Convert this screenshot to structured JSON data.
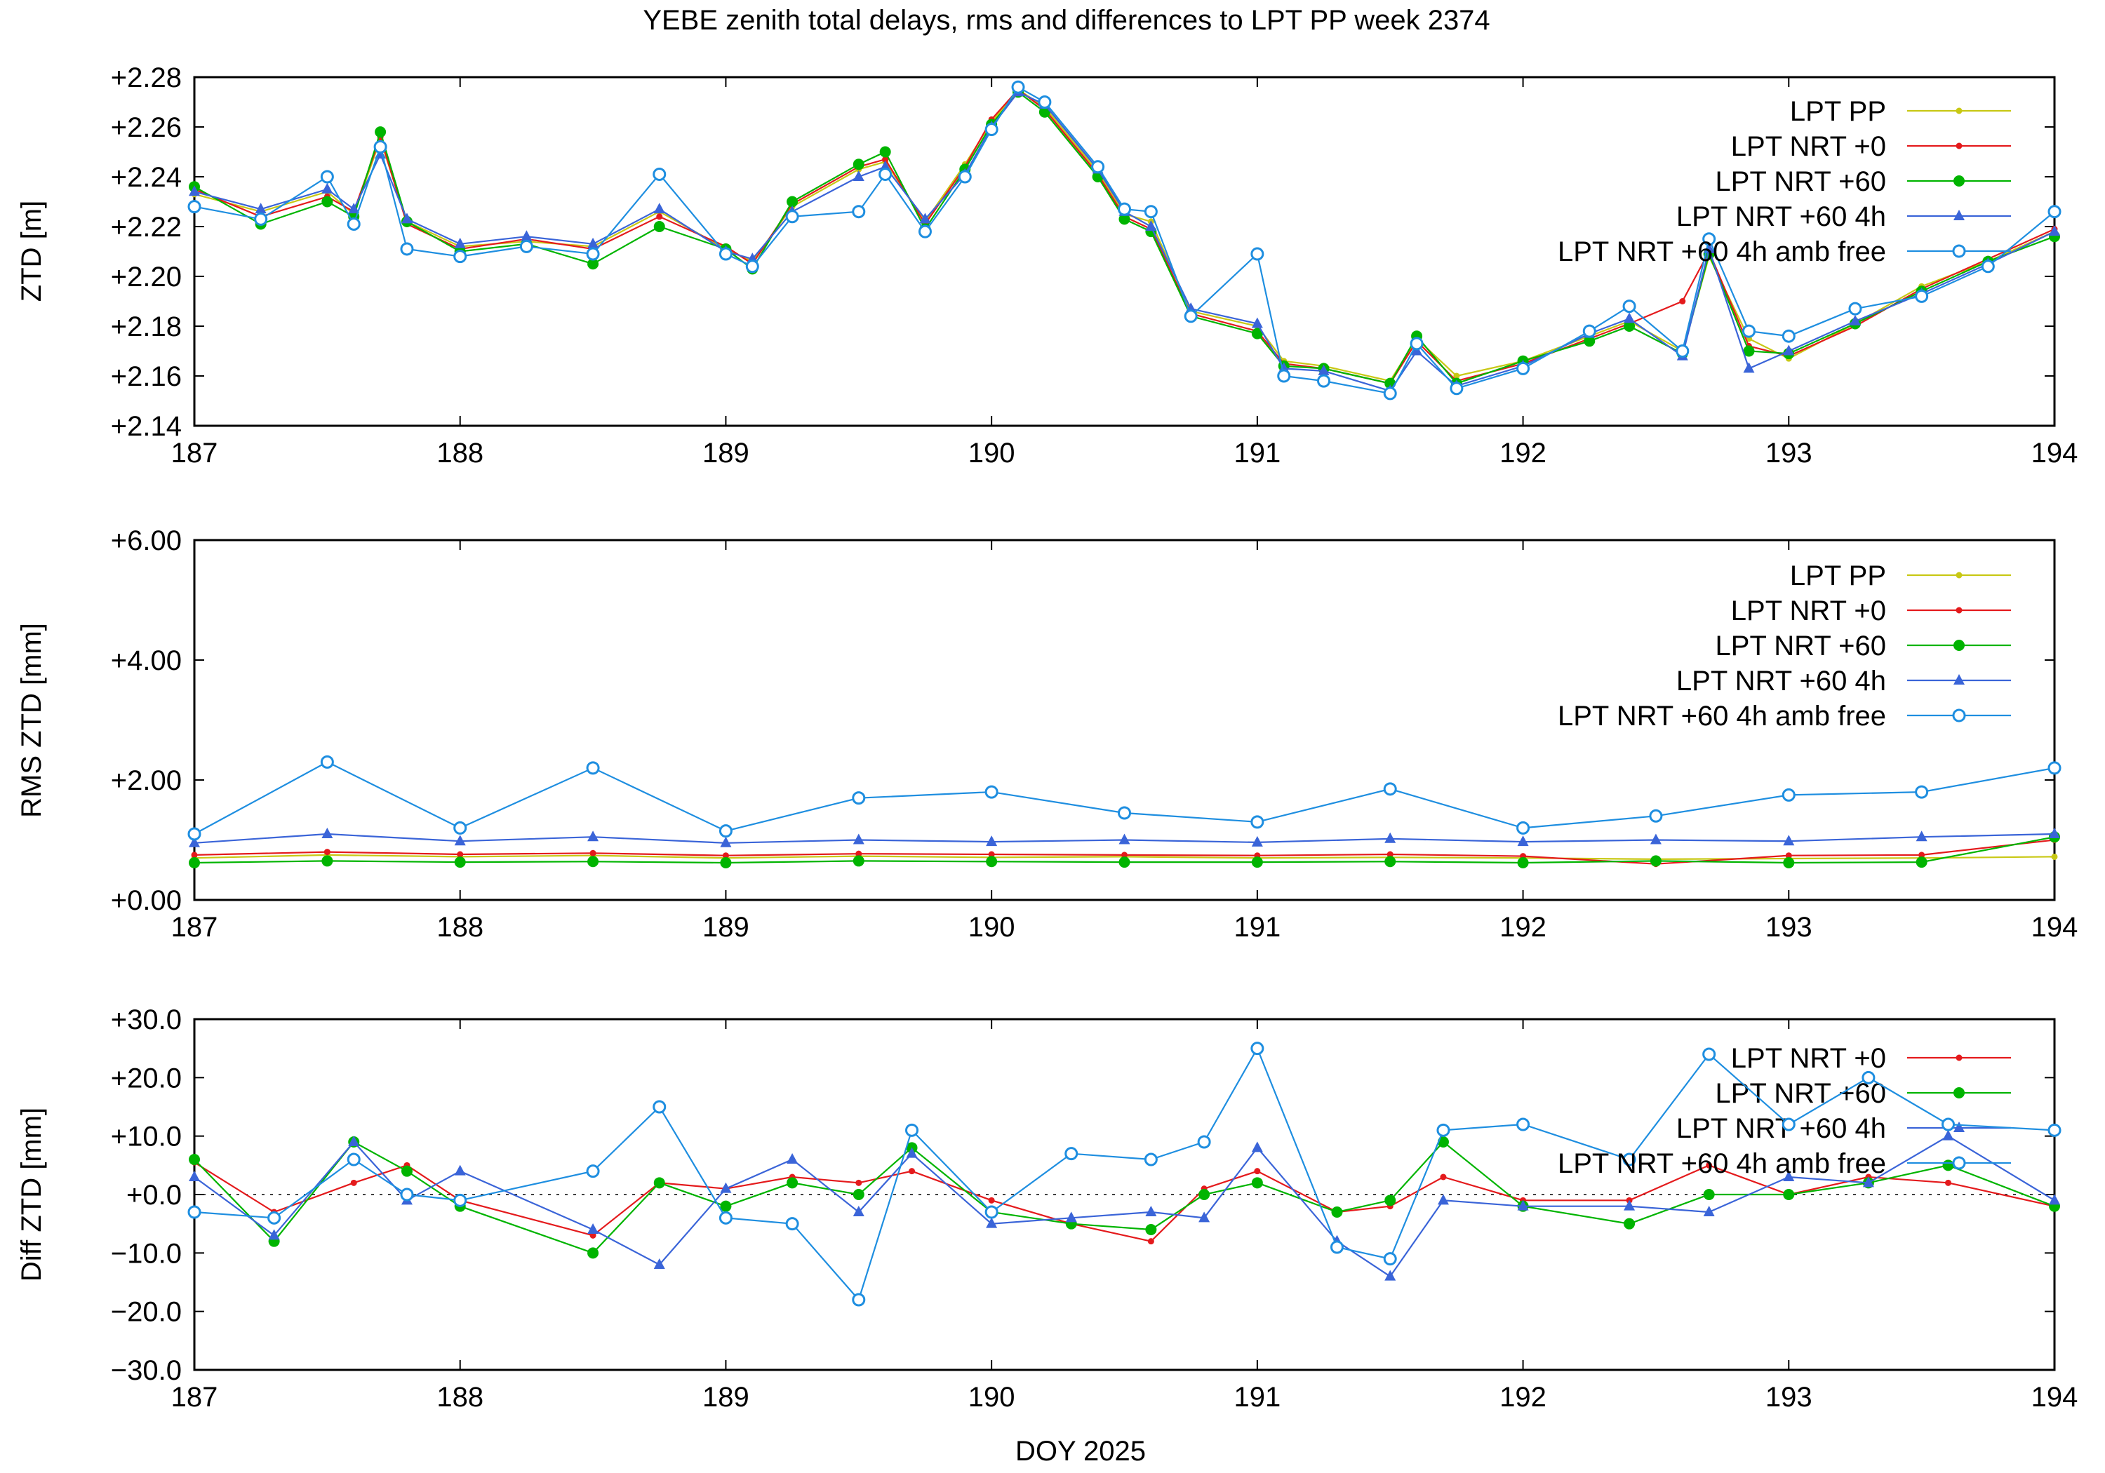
{
  "title": "YEBE zenith total delays, rms and differences to LPT PP week 2374",
  "xlabel": "DOY 2025",
  "colors": {
    "lpt_pp": "#c8c814",
    "lpt_nrt_0": "#e41a1c",
    "lpt_nrt_60": "#00b400",
    "lpt_nrt_60_4h": "#3a64d8",
    "lpt_nrt_60_4h_amb_free": "#1e8ee0"
  },
  "chart_data": [
    {
      "type": "line",
      "id": "ztd",
      "ylabel": "ZTD [m]",
      "xlim": [
        187,
        194
      ],
      "ylim": [
        2.14,
        2.28
      ],
      "x_ticks": [
        "187",
        "188",
        "189",
        "190",
        "191",
        "192",
        "193",
        "194"
      ],
      "y_ticks": [
        "+2.14",
        "+2.16",
        "+2.18",
        "+2.20",
        "+2.22",
        "+2.24",
        "+2.26",
        "+2.28"
      ],
      "y_tick_values": [
        2.14,
        2.16,
        2.18,
        2.2,
        2.22,
        2.24,
        2.26,
        2.28
      ],
      "legend_position": "top-right",
      "series": [
        {
          "name": "LPT PP",
          "key": "lpt_pp",
          "marker": "small-dot",
          "x": [
            187.0,
            187.25,
            187.5,
            187.6,
            187.7,
            187.8,
            188.0,
            188.25,
            188.5,
            188.75,
            189.0,
            189.1,
            189.25,
            189.5,
            189.6,
            189.75,
            189.9,
            190.0,
            190.1,
            190.2,
            190.4,
            190.5,
            190.6,
            190.75,
            191.0,
            191.1,
            191.25,
            191.5,
            191.6,
            191.75,
            192.0,
            192.25,
            192.4,
            192.6,
            192.7,
            192.85,
            193.0,
            193.25,
            193.5,
            193.75,
            194.0
          ],
          "y": [
            2.233,
            2.226,
            2.234,
            2.225,
            2.255,
            2.222,
            2.212,
            2.214,
            2.212,
            2.226,
            2.211,
            2.206,
            2.228,
            2.243,
            2.246,
            2.222,
            2.245,
            2.262,
            2.275,
            2.268,
            2.242,
            2.225,
            2.222,
            2.186,
            2.18,
            2.166,
            2.164,
            2.158,
            2.175,
            2.16,
            2.166,
            2.176,
            2.182,
            2.17,
            2.208,
            2.175,
            2.167,
            2.181,
            2.196,
            2.206,
            2.218
          ]
        },
        {
          "name": "LPT NRT +0",
          "key": "lpt_nrt_0",
          "marker": "small-dot",
          "x": [
            187.0,
            187.25,
            187.5,
            187.6,
            187.7,
            187.8,
            188.0,
            188.25,
            188.5,
            188.75,
            189.0,
            189.1,
            189.25,
            189.5,
            189.6,
            189.75,
            189.9,
            190.0,
            190.1,
            190.2,
            190.4,
            190.5,
            190.6,
            190.75,
            191.0,
            191.1,
            191.25,
            191.5,
            191.6,
            191.75,
            192.0,
            192.25,
            192.4,
            192.6,
            192.7,
            192.85,
            193.0,
            193.25,
            193.5,
            193.75,
            194.0
          ],
          "y": [
            2.235,
            2.224,
            2.232,
            2.226,
            2.256,
            2.221,
            2.211,
            2.215,
            2.211,
            2.224,
            2.212,
            2.205,
            2.229,
            2.244,
            2.247,
            2.221,
            2.244,
            2.263,
            2.275,
            2.267,
            2.241,
            2.224,
            2.219,
            2.185,
            2.178,
            2.165,
            2.163,
            2.157,
            2.174,
            2.158,
            2.165,
            2.175,
            2.181,
            2.19,
            2.21,
            2.172,
            2.168,
            2.18,
            2.195,
            2.207,
            2.219
          ]
        },
        {
          "name": "LPT NRT +60",
          "key": "lpt_nrt_60",
          "marker": "dot",
          "x": [
            187.0,
            187.25,
            187.5,
            187.6,
            187.7,
            187.8,
            188.0,
            188.25,
            188.5,
            188.75,
            189.0,
            189.1,
            189.25,
            189.5,
            189.6,
            189.75,
            189.9,
            190.0,
            190.1,
            190.2,
            190.4,
            190.5,
            190.6,
            190.75,
            191.0,
            191.1,
            191.25,
            191.5,
            191.6,
            191.75,
            192.0,
            192.25,
            192.4,
            192.6,
            192.7,
            192.85,
            193.0,
            193.25,
            193.5,
            193.75,
            194.0
          ],
          "y": [
            2.236,
            2.221,
            2.23,
            2.224,
            2.258,
            2.222,
            2.21,
            2.213,
            2.205,
            2.22,
            2.211,
            2.203,
            2.23,
            2.245,
            2.25,
            2.219,
            2.243,
            2.261,
            2.274,
            2.266,
            2.24,
            2.223,
            2.218,
            2.184,
            2.177,
            2.164,
            2.163,
            2.157,
            2.176,
            2.157,
            2.166,
            2.174,
            2.18,
            2.169,
            2.209,
            2.17,
            2.169,
            2.181,
            2.194,
            2.206,
            2.216
          ]
        },
        {
          "name": "LPT NRT +60 4h",
          "key": "lpt_nrt_60_4h",
          "marker": "triangle",
          "x": [
            187.0,
            187.25,
            187.5,
            187.6,
            187.7,
            187.8,
            188.0,
            188.25,
            188.5,
            188.75,
            189.0,
            189.1,
            189.25,
            189.5,
            189.6,
            189.75,
            189.9,
            190.0,
            190.1,
            190.2,
            190.4,
            190.5,
            190.6,
            190.75,
            191.0,
            191.1,
            191.25,
            191.5,
            191.6,
            191.75,
            192.0,
            192.25,
            192.4,
            192.6,
            192.7,
            192.85,
            193.0,
            193.25,
            193.5,
            193.75,
            194.0
          ],
          "y": [
            2.234,
            2.227,
            2.235,
            2.227,
            2.249,
            2.223,
            2.213,
            2.216,
            2.213,
            2.227,
            2.21,
            2.207,
            2.226,
            2.24,
            2.244,
            2.223,
            2.241,
            2.26,
            2.274,
            2.269,
            2.243,
            2.226,
            2.22,
            2.187,
            2.181,
            2.163,
            2.162,
            2.154,
            2.17,
            2.156,
            2.164,
            2.177,
            2.183,
            2.168,
            2.211,
            2.163,
            2.17,
            2.182,
            2.193,
            2.205,
            2.218
          ]
        },
        {
          "name": "LPT NRT +60 4h amb free",
          "key": "lpt_nrt_60_4h_amb_free",
          "marker": "open-circle",
          "x": [
            187.0,
            187.25,
            187.5,
            187.6,
            187.7,
            187.8,
            188.0,
            188.25,
            188.5,
            188.75,
            189.0,
            189.1,
            189.25,
            189.5,
            189.6,
            189.75,
            189.9,
            190.0,
            190.1,
            190.2,
            190.4,
            190.5,
            190.6,
            190.75,
            191.0,
            191.1,
            191.25,
            191.5,
            191.6,
            191.75,
            192.0,
            192.25,
            192.4,
            192.6,
            192.7,
            192.85,
            193.0,
            193.25,
            193.5,
            193.75,
            194.0
          ],
          "y": [
            2.228,
            2.223,
            2.24,
            2.221,
            2.252,
            2.211,
            2.208,
            2.212,
            2.209,
            2.241,
            2.209,
            2.204,
            2.224,
            2.226,
            2.241,
            2.218,
            2.24,
            2.259,
            2.276,
            2.27,
            2.244,
            2.227,
            2.226,
            2.184,
            2.209,
            2.16,
            2.158,
            2.153,
            2.173,
            2.155,
            2.163,
            2.178,
            2.188,
            2.17,
            2.215,
            2.178,
            2.176,
            2.187,
            2.192,
            2.204,
            2.226
          ]
        }
      ]
    },
    {
      "type": "line",
      "id": "rms",
      "ylabel": "RMS ZTD [mm]",
      "xlim": [
        187,
        194
      ],
      "ylim": [
        0,
        6
      ],
      "x_ticks": [
        "187",
        "188",
        "189",
        "190",
        "191",
        "192",
        "193",
        "194"
      ],
      "y_ticks": [
        "+0.00",
        "+2.00",
        "+4.00",
        "+6.00"
      ],
      "y_tick_values": [
        0,
        2,
        4,
        6
      ],
      "legend_position": "top-right",
      "series": [
        {
          "name": "LPT PP",
          "key": "lpt_pp",
          "marker": "small-dot",
          "x": [
            187.0,
            187.5,
            188.0,
            188.5,
            189.0,
            189.5,
            190.0,
            190.5,
            191.0,
            191.5,
            192.0,
            192.5,
            193.0,
            193.5,
            194.0
          ],
          "y": [
            0.7,
            0.75,
            0.72,
            0.74,
            0.7,
            0.73,
            0.71,
            0.72,
            0.7,
            0.71,
            0.7,
            0.68,
            0.69,
            0.7,
            0.72
          ]
        },
        {
          "name": "LPT NRT +0",
          "key": "lpt_nrt_0",
          "marker": "small-dot",
          "x": [
            187.0,
            187.5,
            188.0,
            188.5,
            189.0,
            189.5,
            190.0,
            190.5,
            191.0,
            191.5,
            192.0,
            192.5,
            193.0,
            193.5,
            194.0
          ],
          "y": [
            0.75,
            0.8,
            0.76,
            0.78,
            0.74,
            0.77,
            0.76,
            0.75,
            0.74,
            0.76,
            0.73,
            0.6,
            0.74,
            0.75,
            1.0
          ]
        },
        {
          "name": "LPT NRT +60",
          "key": "lpt_nrt_60",
          "marker": "dot",
          "x": [
            187.0,
            187.5,
            188.0,
            188.5,
            189.0,
            189.5,
            190.0,
            190.5,
            191.0,
            191.5,
            192.0,
            192.5,
            193.0,
            193.5,
            194.0
          ],
          "y": [
            0.62,
            0.65,
            0.63,
            0.64,
            0.62,
            0.65,
            0.64,
            0.63,
            0.63,
            0.64,
            0.62,
            0.65,
            0.62,
            0.63,
            1.05
          ]
        },
        {
          "name": "LPT NRT +60 4h",
          "key": "lpt_nrt_60_4h",
          "marker": "triangle",
          "x": [
            187.0,
            187.5,
            188.0,
            188.5,
            189.0,
            189.5,
            190.0,
            190.5,
            191.0,
            191.5,
            192.0,
            192.5,
            193.0,
            193.5,
            194.0
          ],
          "y": [
            0.95,
            1.1,
            0.98,
            1.05,
            0.95,
            1.0,
            0.97,
            1.0,
            0.96,
            1.02,
            0.97,
            1.0,
            0.98,
            1.05,
            1.1
          ]
        },
        {
          "name": "LPT NRT +60 4h amb free",
          "key": "lpt_nrt_60_4h_amb_free",
          "marker": "open-circle",
          "x": [
            187.0,
            187.5,
            188.0,
            188.5,
            189.0,
            189.5,
            190.0,
            190.5,
            191.0,
            191.5,
            192.0,
            192.5,
            193.0,
            193.5,
            194.0
          ],
          "y": [
            1.1,
            2.3,
            1.2,
            2.2,
            1.15,
            1.7,
            1.8,
            1.45,
            1.3,
            1.85,
            1.2,
            1.4,
            1.75,
            1.8,
            2.2
          ]
        }
      ]
    },
    {
      "type": "line",
      "id": "diff",
      "ylabel": "Diff ZTD [mm]",
      "xlabel": "DOY 2025",
      "xlim": [
        187,
        194
      ],
      "ylim": [
        -30,
        30
      ],
      "x_ticks": [
        "187",
        "188",
        "189",
        "190",
        "191",
        "192",
        "193",
        "194"
      ],
      "y_ticks": [
        "−30.0",
        "−20.0",
        "−10.0",
        "+0.0",
        "+10.0",
        "+20.0",
        "+30.0"
      ],
      "y_tick_values": [
        -30,
        -20,
        -10,
        0,
        10,
        20,
        30
      ],
      "zero_line": true,
      "legend_position": "top-right",
      "series": [
        {
          "name": "LPT NRT +0",
          "key": "lpt_nrt_0",
          "marker": "small-dot",
          "x": [
            187.0,
            187.3,
            187.6,
            187.8,
            188.0,
            188.5,
            188.75,
            189.0,
            189.25,
            189.5,
            189.7,
            190.0,
            190.3,
            190.6,
            190.8,
            191.0,
            191.3,
            191.5,
            191.7,
            192.0,
            192.4,
            192.7,
            193.0,
            193.3,
            193.6,
            194.0
          ],
          "y": [
            5.5,
            -3.0,
            2.0,
            5.0,
            -1.0,
            -7.0,
            2.0,
            1.0,
            3.0,
            2.0,
            4.0,
            -1.0,
            -5.0,
            -8.0,
            1.0,
            4.0,
            -3.0,
            -2.0,
            3.0,
            -1.0,
            -1.0,
            5.0,
            0.0,
            3.0,
            2.0,
            -2.0
          ]
        },
        {
          "name": "LPT NRT +60",
          "key": "lpt_nrt_60",
          "marker": "dot",
          "x": [
            187.0,
            187.3,
            187.6,
            187.8,
            188.0,
            188.5,
            188.75,
            189.0,
            189.25,
            189.5,
            189.7,
            190.0,
            190.3,
            190.6,
            190.8,
            191.0,
            191.3,
            191.5,
            191.7,
            192.0,
            192.4,
            192.7,
            193.0,
            193.3,
            193.6,
            194.0
          ],
          "y": [
            6.0,
            -8.0,
            9.0,
            4.0,
            -2.0,
            -10.0,
            2.0,
            -2.0,
            2.0,
            0.0,
            8.0,
            -3.0,
            -5.0,
            -6.0,
            0.0,
            2.0,
            -3.0,
            -1.0,
            9.0,
            -2.0,
            -5.0,
            0.0,
            0.0,
            2.0,
            5.0,
            -2.0
          ]
        },
        {
          "name": "LPT NRT +60 4h",
          "key": "lpt_nrt_60_4h",
          "marker": "triangle",
          "x": [
            187.0,
            187.3,
            187.6,
            187.8,
            188.0,
            188.5,
            188.75,
            189.0,
            189.25,
            189.5,
            189.7,
            190.0,
            190.3,
            190.6,
            190.8,
            191.0,
            191.3,
            191.5,
            191.7,
            192.0,
            192.4,
            192.7,
            193.0,
            193.3,
            193.6,
            194.0
          ],
          "y": [
            3.0,
            -7.0,
            9.0,
            -1.0,
            4.0,
            -6.0,
            -12.0,
            1.0,
            6.0,
            -3.0,
            7.0,
            -5.0,
            -4.0,
            -3.0,
            -4.0,
            8.0,
            -8.0,
            -14.0,
            -1.0,
            -2.0,
            -2.0,
            -3.0,
            3.0,
            2.0,
            10.0,
            -1.0
          ]
        },
        {
          "name": "LPT NRT +60 4h amb free",
          "key": "lpt_nrt_60_4h_amb_free",
          "marker": "open-circle",
          "x": [
            187.0,
            187.3,
            187.6,
            187.8,
            188.0,
            188.5,
            188.75,
            189.0,
            189.25,
            189.5,
            189.7,
            190.0,
            190.3,
            190.6,
            190.8,
            191.0,
            191.3,
            191.5,
            191.7,
            192.0,
            192.4,
            192.7,
            193.0,
            193.3,
            193.6,
            194.0
          ],
          "y": [
            -3.0,
            -4.0,
            6.0,
            0.0,
            -1.0,
            4.0,
            15.0,
            -4.0,
            -5.0,
            -18.0,
            11.0,
            -3.0,
            7.0,
            6.0,
            9.0,
            25.0,
            -9.0,
            -11.0,
            11.0,
            12.0,
            6.0,
            24.0,
            12.0,
            20.0,
            12.0,
            11.0
          ]
        }
      ]
    }
  ]
}
